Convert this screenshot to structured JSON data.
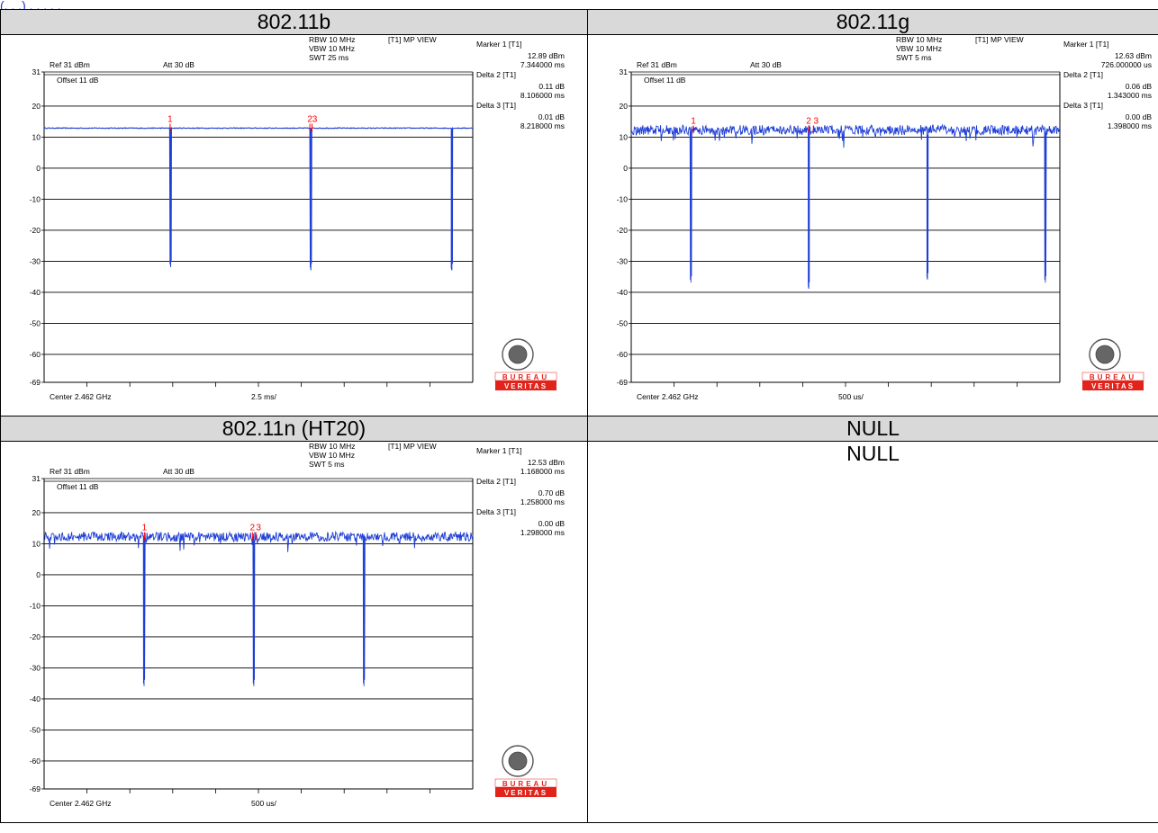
{
  "top_strip_text": "(. . .) . . . . .",
  "table": {
    "headers": [
      "802.11b",
      "802.11g",
      "802.11n (HT20)",
      "NULL"
    ],
    "null_cell": "NULL"
  },
  "logo": {
    "text_top": "BUREAU",
    "text_bottom": "VERITAS",
    "seal_text": "BUREAU VERITAS",
    "seal_year": "1828",
    "color": "#e2231a"
  },
  "chart_data": [
    {
      "type": "line",
      "title": "802.11b",
      "settings": {
        "rbw": "RBW 10 MHz",
        "vbw": "VBW 10 MHz",
        "swt": "SWT 25 ms",
        "view": "[T1] MP VIEW",
        "ref": "Ref 31 dBm",
        "att": "Att  30 dB",
        "offset": "Offset 11 dB"
      },
      "markers": [
        {
          "label": "Marker 1 [T1]",
          "level": "12.89 dBm",
          "time": "7.344000 ms"
        },
        {
          "label": "Delta 2 [T1]",
          "level": "0.11 dB",
          "time": "8.106000 ms"
        },
        {
          "label": "Delta 3 [T1]",
          "level": "0.01 dB",
          "time": "8.218000 ms"
        }
      ],
      "marker_labels": [
        "1",
        "2",
        "3"
      ],
      "marker_x_div": [
        2.94,
        6.2,
        6.25
      ],
      "y_ticks": [
        "31",
        "20",
        "10",
        "0",
        "-10",
        "-20",
        "-30",
        "-40",
        "-50",
        "-60",
        "-69"
      ],
      "ylim": [
        -69,
        31
      ],
      "xlim_div": [
        0,
        10
      ],
      "x_center_label": "Center 2.462 GHz",
      "x_div_label": "2.5 ms/",
      "level_dbm": 12.9,
      "noise": 0.25,
      "dips": [
        {
          "x_div": 2.94,
          "depth_dbm": -31
        },
        {
          "x_div": 6.21,
          "depth_dbm": -32
        },
        {
          "x_div": 9.5,
          "depth_dbm": -32
        }
      ],
      "trace_color": "#1f3fd6",
      "marker_color": "#ff0000"
    },
    {
      "type": "line",
      "title": "802.11g",
      "settings": {
        "rbw": "RBW 10 MHz",
        "vbw": "VBW 10 MHz",
        "swt": "SWT 5 ms",
        "view": "[T1] MP VIEW",
        "ref": "Ref 31 dBm",
        "att": "Att  30 dB",
        "offset": "Offset 11 dB"
      },
      "markers": [
        {
          "label": "Marker 1 [T1]",
          "level": "12.63 dBm",
          "time": "726.000000 us"
        },
        {
          "label": "Delta 2 [T1]",
          "level": "0.06 dB",
          "time": "1.343000 ms"
        },
        {
          "label": "Delta 3 [T1]",
          "level": "0.00 dB",
          "time": "1.398000 ms"
        }
      ],
      "marker_labels": [
        "1",
        "2",
        "3"
      ],
      "marker_x_div": [
        1.45,
        4.14,
        4.25
      ],
      "y_ticks": [
        "31",
        "20",
        "10",
        "0",
        "-10",
        "-20",
        "-30",
        "-40",
        "-50",
        "-60",
        "-69"
      ],
      "ylim": [
        -69,
        31
      ],
      "xlim_div": [
        0,
        10
      ],
      "x_center_label": "Center 2.462 GHz",
      "x_div_label": "500 us/",
      "level_dbm": 12.3,
      "noise": 3.2,
      "dips": [
        {
          "x_div": 1.38,
          "depth_dbm": -36
        },
        {
          "x_div": 4.13,
          "depth_dbm": -38
        },
        {
          "x_div": 6.9,
          "depth_dbm": -35
        },
        {
          "x_div": 9.65,
          "depth_dbm": -36
        }
      ],
      "trace_color": "#1f3fd6",
      "marker_color": "#ff0000"
    },
    {
      "type": "line",
      "title": "802.11n (HT20)",
      "settings": {
        "rbw": "RBW 10 MHz",
        "vbw": "VBW 10 MHz",
        "swt": "SWT 5 ms",
        "view": "[T1] MP VIEW",
        "ref": "Ref 31 dBm",
        "att": "Att  30 dB",
        "offset": "Offset 11 dB"
      },
      "markers": [
        {
          "label": "Marker 1 [T1]",
          "level": "12.53 dBm",
          "time": "1.168000 ms"
        },
        {
          "label": "Delta 2 [T1]",
          "level": "0.70 dB",
          "time": "1.258000 ms"
        },
        {
          "label": "Delta 3 [T1]",
          "level": "0.00 dB",
          "time": "1.298000 ms"
        }
      ],
      "marker_labels": [
        "1",
        "2",
        "3"
      ],
      "marker_x_div": [
        2.34,
        4.86,
        4.94
      ],
      "y_ticks": [
        "31",
        "20",
        "10",
        "0",
        "-10",
        "-20",
        "-30",
        "-40",
        "-50",
        "-60",
        "-69"
      ],
      "ylim": [
        -69,
        31
      ],
      "xlim_div": [
        0,
        10
      ],
      "x_center_label": "Center 2.462 GHz",
      "x_div_label": "500 us/",
      "level_dbm": 12.3,
      "noise": 3.0,
      "dips": [
        {
          "x_div": 2.32,
          "depth_dbm": -35
        },
        {
          "x_div": 4.88,
          "depth_dbm": -35
        },
        {
          "x_div": 7.45,
          "depth_dbm": -35
        }
      ],
      "trace_color": "#1f3fd6",
      "marker_color": "#ff0000"
    }
  ]
}
